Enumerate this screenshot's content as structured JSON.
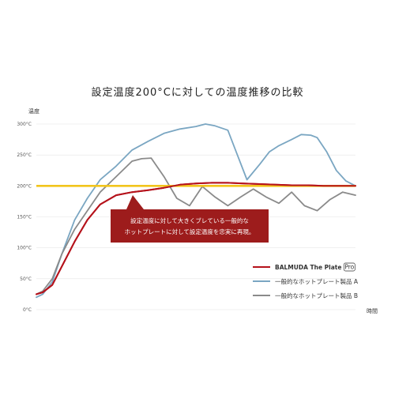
{
  "title": "設定温度200°Cに対しての温度推移の比較",
  "chart_data": {
    "type": "line",
    "ylabel": "温度",
    "xlabel": "時間",
    "ylim": [
      0,
      300
    ],
    "y_ticks": [
      "0°C",
      "50°C",
      "100°C",
      "150°C",
      "200°C",
      "250°C",
      "300°C"
    ],
    "grid": true,
    "legend_position": "bottom-right",
    "reference_line": {
      "value": 200,
      "color": "#f2c51c"
    },
    "annotation": "設定温度に対して大きくブレている一般的なホットプレートに対して設定温度を忠実に再現。",
    "series": [
      {
        "name": "BALMUDA The Plate",
        "badge": "Pro",
        "color": "#b5121b",
        "x": [
          0,
          2,
          5,
          8,
          12,
          16,
          20,
          25,
          30,
          35,
          40,
          45,
          50,
          55,
          60,
          65,
          70,
          75,
          80,
          85,
          90,
          95,
          100
        ],
        "values": [
          25,
          28,
          40,
          70,
          110,
          145,
          170,
          185,
          190,
          193,
          197,
          202,
          204,
          205,
          205,
          204,
          203,
          202,
          201,
          201,
          200,
          200,
          200
        ]
      },
      {
        "name": "一般的なホットプレート製品 A",
        "color": "#7aa6c2",
        "x": [
          0,
          2,
          5,
          8,
          12,
          16,
          20,
          25,
          30,
          35,
          40,
          45,
          50,
          53,
          56,
          60,
          63,
          66,
          70,
          73,
          76,
          80,
          83,
          86,
          88,
          91,
          94,
          97,
          100
        ],
        "values": [
          20,
          25,
          45,
          90,
          145,
          180,
          210,
          232,
          258,
          272,
          285,
          292,
          296,
          300,
          297,
          290,
          250,
          210,
          235,
          255,
          265,
          275,
          283,
          282,
          278,
          255,
          225,
          208,
          200
        ]
      },
      {
        "name": "一般的なホットプレート製品 B",
        "color": "#8a8a8a",
        "x": [
          0,
          2,
          5,
          8,
          12,
          16,
          20,
          25,
          30,
          33,
          36,
          40,
          44,
          48,
          52,
          56,
          60,
          64,
          68,
          72,
          76,
          80,
          84,
          88,
          92,
          96,
          100
        ],
        "values": [
          25,
          30,
          50,
          90,
          130,
          160,
          190,
          215,
          240,
          244,
          245,
          215,
          180,
          168,
          199,
          182,
          168,
          182,
          195,
          182,
          172,
          190,
          168,
          160,
          178,
          190,
          185
        ]
      }
    ]
  }
}
